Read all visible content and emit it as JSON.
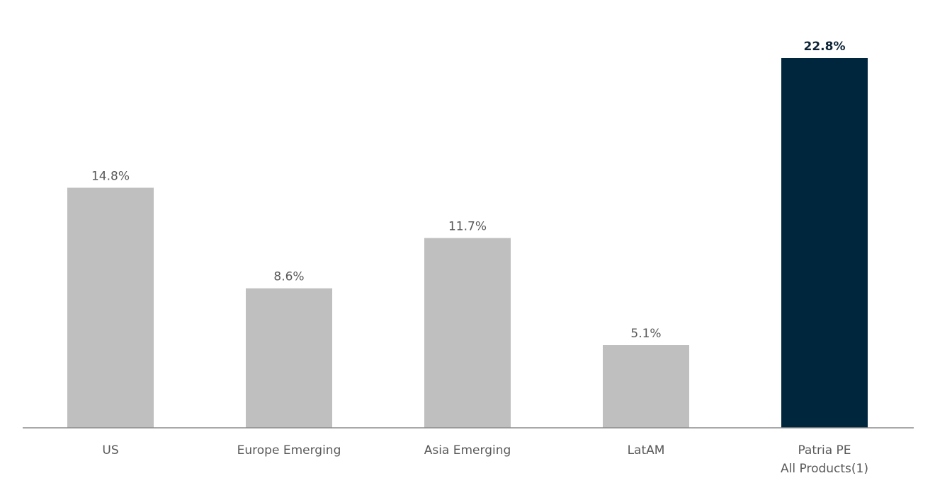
{
  "chart_data": {
    "type": "bar",
    "title": "",
    "xlabel": "",
    "ylabel": "",
    "categories": [
      [
        "US"
      ],
      [
        "Europe Emerging"
      ],
      [
        "Asia Emerging"
      ],
      [
        "LatAM"
      ],
      [
        "Patria PE",
        "All Products(1)"
      ]
    ],
    "values": [
      14.8,
      8.6,
      11.7,
      5.1,
      22.8
    ],
    "value_labels": [
      "14.8%",
      "8.6%",
      "11.7%",
      "5.1%",
      "22.8%"
    ],
    "highlight_index": 4,
    "ylim": [
      0,
      24
    ],
    "grid": false,
    "legend": "none",
    "colors": {
      "bar": "#bfbfbf",
      "highlight_bar": "#00263e",
      "axis": "#8c8c8c",
      "label": "#595959",
      "highlight_label": "#0d2436"
    }
  }
}
